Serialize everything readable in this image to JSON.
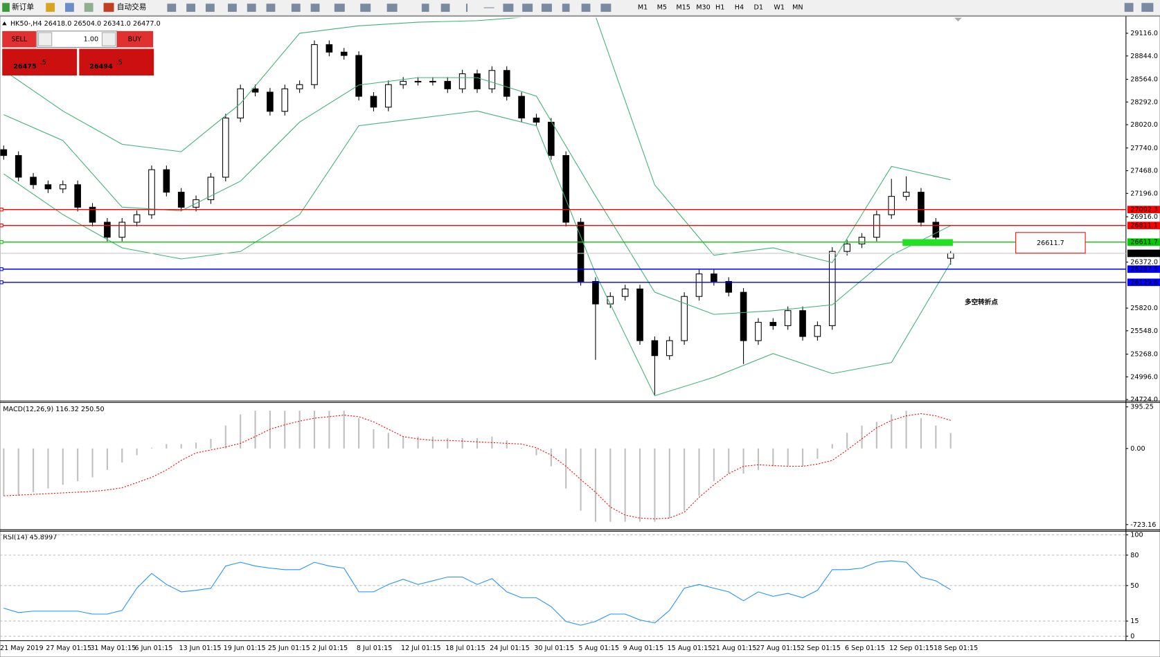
{
  "ui": {
    "toolbar": {
      "new_order": "新订单",
      "auto_trading": "自动交易",
      "timeframes": [
        "M1",
        "M5",
        "M15",
        "M30",
        "H1",
        "H4",
        "D1",
        "W1",
        "MN"
      ]
    },
    "trade_panel": {
      "sell": "SELL",
      "buy": "BUY",
      "lot": "1.00",
      "sell_price": "26475",
      "sell_pips": ".5",
      "buy_price": "26494",
      "buy_pips": ".5"
    },
    "time_labels": [
      "21 May 2019",
      "27 May 01:15",
      "31 May 01:15",
      "6 Jun 01:15",
      "13 Jun 01:15",
      "19 Jun 01:15",
      "25 Jun 01:15",
      "2 Jul 01:15",
      "8 Jul 01:15",
      "12 Jul 01:15",
      "18 Jul 01:15",
      "24 Jul 01:15",
      "30 Jul 01:15",
      "5 Aug 01:15",
      "9 Aug 01:15",
      "15 Aug 01:15",
      "21 Aug 01:15",
      "27 Aug 01:15",
      "2 Sep 01:15",
      "6 Sep 01:15",
      "12 Sep 01:15",
      "18 Sep 01:15"
    ]
  },
  "chart_data": [
    {
      "type": "candlestick",
      "title": "HK50-,H4 26418.0 26504.0 26341.0 26477.0",
      "open": [
        27720,
        27650,
        27390,
        27300,
        27250,
        27300,
        27030,
        26850,
        26670,
        26850,
        26940,
        27480,
        27210,
        27030,
        27120,
        27390,
        28100,
        28450,
        28410,
        28180,
        28450,
        28500,
        28980,
        28890,
        28850,
        28360,
        28230,
        28500,
        28540,
        28540,
        28540,
        28450,
        28630,
        28450,
        28670,
        28360,
        28100,
        28050,
        27650,
        26850,
        26140,
        25870,
        25960,
        26050,
        25430,
        25250,
        25430,
        25960,
        26230,
        26140,
        26010,
        25430,
        25650,
        25610,
        25790,
        25480,
        25610,
        26500,
        26590,
        26670,
        26940,
        27160,
        27210,
        26850,
        26418
      ],
      "high": [
        27770,
        27700,
        27440,
        27350,
        27350,
        27350,
        27080,
        26900,
        26900,
        26990,
        27530,
        27530,
        27260,
        27170,
        27440,
        28150,
        28500,
        28500,
        28460,
        28500,
        28550,
        29030,
        29030,
        28940,
        28900,
        28410,
        28550,
        28590,
        28590,
        28590,
        28590,
        28680,
        28680,
        28720,
        28720,
        28410,
        28150,
        28100,
        27700,
        26900,
        26190,
        26010,
        26100,
        26100,
        25480,
        25480,
        26010,
        26280,
        26280,
        26190,
        26060,
        25700,
        25700,
        25840,
        25840,
        25660,
        26550,
        26640,
        26720,
        26990,
        27370,
        27400,
        27260,
        26900,
        26504
      ],
      "low": [
        27600,
        27340,
        27250,
        27200,
        27200,
        26980,
        26800,
        26620,
        26620,
        26800,
        26890,
        27160,
        26980,
        26980,
        27070,
        27340,
        28050,
        28360,
        28130,
        28130,
        28400,
        28450,
        28840,
        28800,
        28310,
        28180,
        28180,
        28450,
        28490,
        28490,
        28400,
        28400,
        28400,
        28400,
        28310,
        28050,
        28000,
        27600,
        26800,
        26090,
        25200,
        25820,
        25910,
        25380,
        24780,
        25200,
        25380,
        25910,
        26090,
        25960,
        25150,
        25380,
        25560,
        25560,
        25430,
        25430,
        25560,
        26450,
        26540,
        26620,
        26890,
        27110,
        26800,
        26620,
        26341
      ],
      "close": [
        27650,
        27390,
        27300,
        27250,
        27300,
        27030,
        26850,
        26670,
        26850,
        26940,
        27480,
        27210,
        27030,
        27120,
        27390,
        28100,
        28450,
        28410,
        28180,
        28450,
        28500,
        28980,
        28890,
        28850,
        28360,
        28230,
        28500,
        28540,
        28540,
        28540,
        28450,
        28630,
        28450,
        28670,
        28360,
        28100,
        28050,
        27650,
        26850,
        26140,
        25870,
        25960,
        26050,
        25430,
        25250,
        25430,
        25960,
        26230,
        26140,
        26010,
        25430,
        25650,
        25610,
        25790,
        25480,
        25610,
        26500,
        26590,
        26670,
        26940,
        27160,
        27210,
        26850,
        26670,
        26477
      ],
      "bands": {
        "color": "#3cb371",
        "x": [
          0,
          4,
          8,
          12,
          16,
          20,
          24,
          28,
          32,
          36,
          40,
          44,
          48,
          52,
          56,
          60,
          64
        ],
        "upper": [
          28672,
          28184,
          27785,
          27696,
          28273,
          29116,
          29205,
          29249,
          29267,
          29320,
          29320,
          27297,
          26454,
          26543,
          26366,
          27519,
          27359
        ],
        "middle": [
          28140,
          27830,
          27031,
          26987,
          27342,
          28051,
          28495,
          28584,
          28584,
          28362,
          27164,
          26011,
          25745,
          25789,
          25860,
          26454,
          26809
        ],
        "lower": [
          27430,
          26942,
          26543,
          26410,
          26499,
          26942,
          28007,
          28096,
          28184,
          28007,
          26233,
          24769,
          24991,
          25275,
          25035,
          25168,
          26366
        ]
      },
      "levels": [
        {
          "value": 27002.3,
          "label": "27002.3",
          "color": "#ff0000"
        },
        {
          "value": 26811.1,
          "label": "26811.1",
          "color": "#ff0000"
        },
        {
          "value": 26611.7,
          "label": "26611.7",
          "color": "#00cc00"
        },
        {
          "value": 26477,
          "label": "26477.0",
          "color": "#000000"
        },
        {
          "value": 26287.5,
          "label": "26287.5",
          "color": "#0000ff"
        },
        {
          "value": 26129.6,
          "label": "26129.6",
          "color": "#0000ff"
        }
      ],
      "annotation": "26611.7",
      "note": "多空转折点",
      "ylim": [
        24715,
        29302
      ],
      "yticks": [
        {
          "value": 29116,
          "label": "29116.0"
        },
        {
          "value": 28844,
          "label": "28844.0"
        },
        {
          "value": 28564,
          "label": "28564.0"
        },
        {
          "value": 28292,
          "label": "28292.0"
        },
        {
          "value": 28020,
          "label": "28020.0"
        },
        {
          "value": 27740,
          "label": "27740.0"
        },
        {
          "value": 27468,
          "label": "27468.0"
        },
        {
          "value": 27196,
          "label": "27196.0"
        },
        {
          "value": 26916,
          "label": "26916.0"
        },
        {
          "value": 26372,
          "label": "26372.0"
        },
        {
          "value": 25820,
          "label": "25820.0"
        },
        {
          "value": 25548,
          "label": "25548.0"
        },
        {
          "value": 25268,
          "label": "25268.0"
        },
        {
          "value": 24996,
          "label": "24996.0"
        },
        {
          "value": 24724,
          "label": "24724.0"
        }
      ]
    },
    {
      "type": "macd",
      "title": "MACD(12,26,9) 116.32 250.50",
      "series": [
        {
          "color": "#c0c0c0",
          "values": [
            -450,
            -450,
            -415,
            -380,
            -345,
            -310,
            -274,
            -204,
            -134,
            -63,
            7,
            42,
            42,
            56,
            91,
            218,
            324,
            359,
            359,
            359,
            359,
            359,
            359,
            359,
            288,
            183,
            148,
            113,
            113,
            113,
            98,
            98,
            98,
            113,
            77,
            7,
            -63,
            -169,
            -380,
            -591,
            -696,
            -696,
            -696,
            -696,
            -696,
            -661,
            -591,
            -450,
            -310,
            -239,
            -239,
            -204,
            -169,
            -169,
            -169,
            -98,
            42,
            148,
            218,
            253,
            324,
            359,
            288,
            218,
            148
          ]
        },
        {
          "color": "#ff0000",
          "values": [
            -450,
            -443,
            -436,
            -429,
            -422,
            -415,
            -408,
            -394,
            -373,
            -324,
            -274,
            -204,
            -113,
            -42,
            -14,
            14,
            49,
            113,
            183,
            225,
            260,
            288,
            302,
            317,
            302,
            253,
            183,
            113,
            91,
            77,
            77,
            70,
            63,
            56,
            49,
            42,
            7,
            -63,
            -169,
            -295,
            -415,
            -556,
            -633,
            -661,
            -668,
            -661,
            -605,
            -464,
            -345,
            -239,
            -169,
            -155,
            -162,
            -169,
            -169,
            -148,
            -113,
            -14,
            91,
            197,
            267,
            310,
            331,
            310,
            267
          ]
        }
      ],
      "ylim": [
        -765,
        430
      ],
      "yticks": [
        {
          "value": 395.25,
          "label": "395.25"
        },
        {
          "value": 0,
          "label": "0.00"
        },
        {
          "value": -723.16,
          "label": "-723.16"
        }
      ]
    },
    {
      "type": "line",
      "title": "RSI(14) 45.8997",
      "color": "#1e90ff",
      "values": [
        27.7,
        23.4,
        24.8,
        24.8,
        24.8,
        24.8,
        21.9,
        21.9,
        25.5,
        47.4,
        62.0,
        51.1,
        43.8,
        45.3,
        47.4,
        69.3,
        73.0,
        69.3,
        67.2,
        65.7,
        65.7,
        73.0,
        69.3,
        67.2,
        43.8,
        43.8,
        51.1,
        56.2,
        51.1,
        54.7,
        58.4,
        58.4,
        51.1,
        56.9,
        43.8,
        38.0,
        38.0,
        29.2,
        14.6,
        10.9,
        14.6,
        21.9,
        21.9,
        16.1,
        13.1,
        25.5,
        47.4,
        51.1,
        47.4,
        43.8,
        35.0,
        43.8,
        39.4,
        42.3,
        38.0,
        45.3,
        65.7,
        65.7,
        67.2,
        73.0,
        74.5,
        73.0,
        58.4,
        54.7,
        45.9
      ],
      "ylim": [
        -4.4,
        103.6
      ],
      "yticks": [
        100,
        80,
        50,
        15,
        0
      ],
      "grid": true
    }
  ]
}
